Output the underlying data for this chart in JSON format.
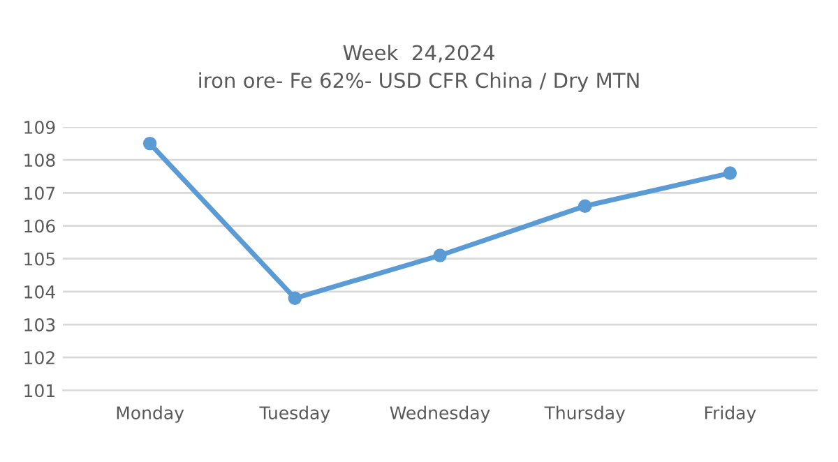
{
  "chart_data": {
    "type": "line",
    "title": "Week  24,2024",
    "subtitle": "iron ore- Fe 62%- USD CFR China / Dry MTN",
    "categories": [
      "Monday",
      "Tuesday",
      "Wednesday",
      "Thursday",
      "Friday"
    ],
    "series": [
      {
        "color": "#5b9bd5",
        "values": [
          108.5,
          103.8,
          105.1,
          106.6,
          107.6
        ]
      }
    ],
    "ylim": [
      101,
      109
    ],
    "yticks": [
      101,
      102,
      103,
      104,
      105,
      106,
      107,
      108,
      109
    ],
    "grid": "y",
    "marker": "circle",
    "line_style": "solid",
    "legend": false
  }
}
